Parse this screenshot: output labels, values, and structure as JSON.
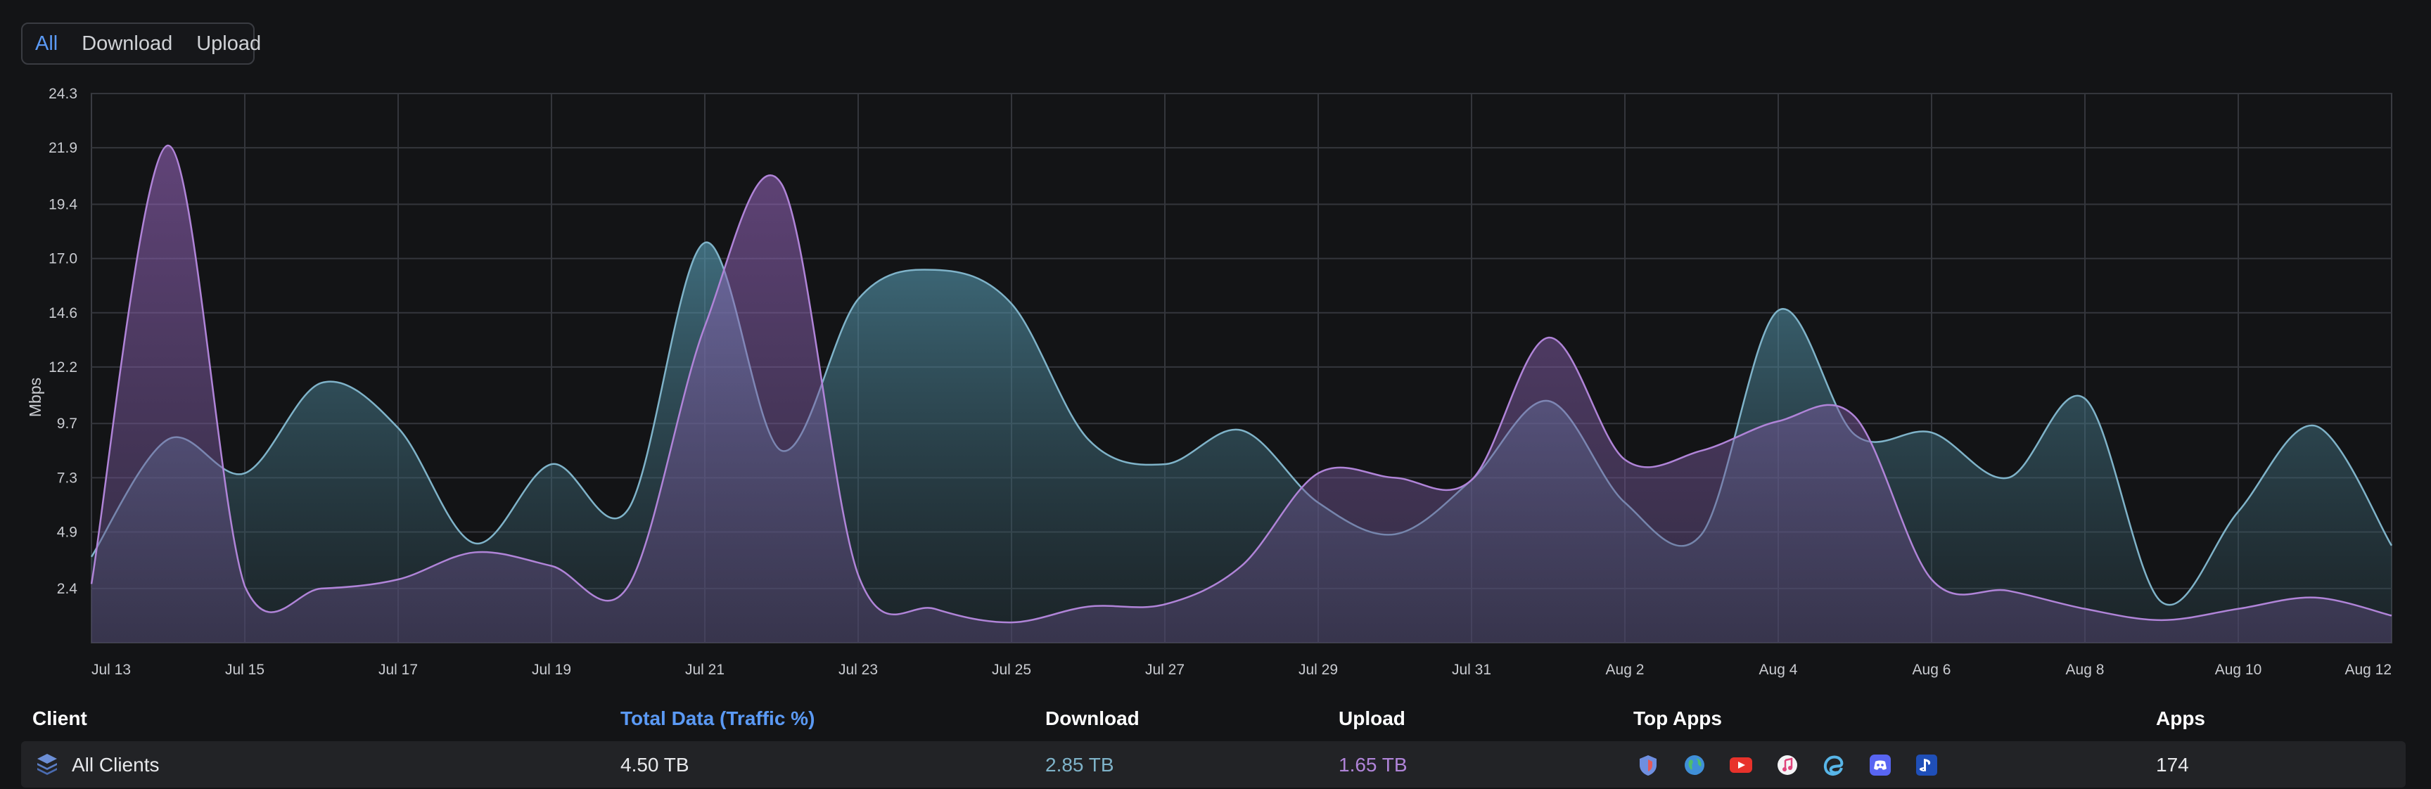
{
  "filter": {
    "options": [
      "All",
      "Download",
      "Upload"
    ],
    "active": "All"
  },
  "chart_data": {
    "type": "area",
    "title": "",
    "xlabel": "",
    "ylabel": "Mbps",
    "ylim": [
      0,
      24.3
    ],
    "y_ticks": [
      "2.4",
      "4.9",
      "7.3",
      "9.7",
      "12.2",
      "14.6",
      "17.0",
      "19.4",
      "21.9",
      "24.3"
    ],
    "x_ticks": [
      "Jul 13",
      "Jul 15",
      "Jul 17",
      "Jul 19",
      "Jul 21",
      "Jul 23",
      "Jul 25",
      "Jul 27",
      "Jul 29",
      "Jul 31",
      "Aug 2",
      "Aug 4",
      "Aug 6",
      "Aug 8",
      "Aug 10",
      "Aug 12"
    ],
    "x_dates": [
      "Jul 13",
      "Jul 14",
      "Jul 15",
      "Jul 16",
      "Jul 17",
      "Jul 18",
      "Jul 19",
      "Jul 20",
      "Jul 21",
      "Jul 22",
      "Jul 23",
      "Jul 24",
      "Jul 25",
      "Jul 26",
      "Jul 27",
      "Jul 28",
      "Jul 29",
      "Jul 30",
      "Jul 31",
      "Aug 1",
      "Aug 2",
      "Aug 3",
      "Aug 4",
      "Aug 5",
      "Aug 6",
      "Aug 7",
      "Aug 8",
      "Aug 9",
      "Aug 10",
      "Aug 11",
      "Aug 12"
    ],
    "grid": true,
    "series": [
      {
        "name": "",
        "color": "#7fb3c9",
        "values": [
          3.8,
          9.0,
          7.5,
          11.5,
          9.5,
          4.4,
          7.9,
          5.9,
          17.7,
          8.5,
          15.2,
          16.5,
          15.0,
          9.0,
          7.9,
          9.4,
          6.2,
          4.8,
          7.2,
          10.7,
          6.2,
          4.8,
          14.7,
          9.2,
          9.3,
          7.3,
          10.8,
          1.8,
          5.8,
          9.6,
          4.3
        ]
      },
      {
        "name": "",
        "color": "#b084d8",
        "values": [
          2.6,
          22.0,
          2.5,
          2.4,
          2.8,
          4.0,
          3.4,
          2.5,
          14.0,
          20.3,
          3.0,
          1.5,
          0.9,
          1.6,
          1.7,
          3.4,
          7.5,
          7.3,
          7.2,
          13.5,
          8.1,
          8.5,
          9.8,
          10.0,
          2.8,
          2.3,
          1.5,
          1.0,
          1.5,
          2.0,
          1.2
        ]
      }
    ]
  },
  "table": {
    "columns": {
      "client": "Client",
      "total": "Total Data (Traffic %)",
      "download": "Download",
      "upload": "Upload",
      "top_apps": "Top Apps",
      "apps": "Apps"
    },
    "rows": [
      {
        "client": "All Clients",
        "icon": "layers-icon",
        "total": "4.50 TB",
        "download": "2.85 TB",
        "upload": "1.65 TB",
        "top_apps": [
          "shield-app-icon",
          "globe-app-icon",
          "youtube-app-icon",
          "music-app-icon",
          "edge-app-icon",
          "discord-app-icon",
          "playstation-app-icon"
        ],
        "apps": "174"
      }
    ]
  }
}
